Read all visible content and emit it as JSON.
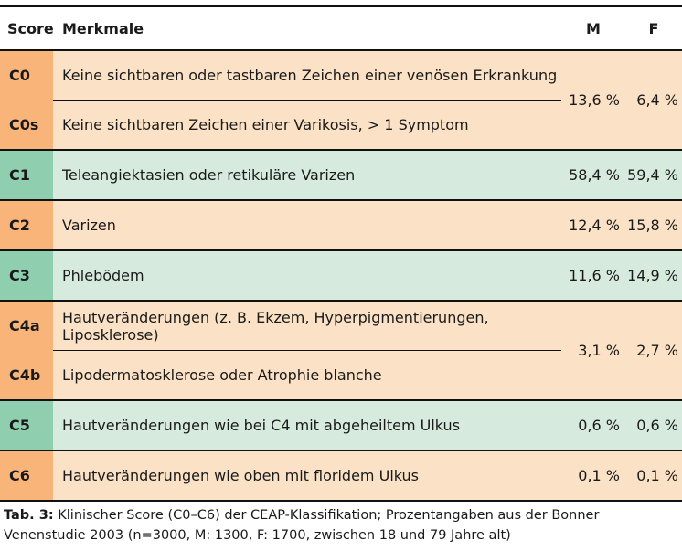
{
  "table": {
    "headers": {
      "score": "Score",
      "merkmale": "Merkmale",
      "m": "M",
      "f": "F"
    },
    "rows": [
      {
        "score": "C0",
        "merkmal": "Keine sichtbaren oder tastbaren Zeichen einer venösen Erkrankung",
        "m": "13,6 %",
        "f": "6,4 %",
        "color": "#f8b479"
      },
      {
        "score": "C0s",
        "merkmal": "Keine sichtbaren Zeichen einer Varikosis, > 1 Symptom",
        "color": "#f8b479"
      },
      {
        "score": "C1",
        "merkmal": "Teleangiektasien oder retikuläre Varizen",
        "m": "58,4 %",
        "f": "59,4 %",
        "color": "#8fcfb0"
      },
      {
        "score": "C2",
        "merkmal": "Varizen",
        "m": "12,4 %",
        "f": "15,8 %",
        "color": "#f8b479"
      },
      {
        "score": "C3",
        "merkmal": "Phlebödem",
        "m": "11,6 %",
        "f": "14,9 %",
        "color": "#8fcfb0"
      },
      {
        "score": "C4a",
        "merkmal": "Hautveränderungen (z. B. Ekzem, Hyperpigmentierungen, Liposklerose)",
        "m": "3,1 %",
        "f": "2,7 %",
        "color": "#f8b479"
      },
      {
        "score": "C4b",
        "merkmal": "Lipodermatosklerose oder Atrophie blanche",
        "color": "#f8b479"
      },
      {
        "score": "C5",
        "merkmal": "Hautveränderungen wie bei C4 mit abgeheiltem Ulkus",
        "m": "0,6 %",
        "f": "0,6 %",
        "color": "#8fcfb0"
      },
      {
        "score": "C6",
        "merkmal": "Hautveränderungen wie oben mit floridem Ulkus",
        "m": "0,1 %",
        "f": "0,1 %",
        "color": "#f8b479"
      }
    ]
  },
  "caption": {
    "label": "Tab. 3:",
    "text": " Klinischer Score (C0–C6) der CEAP-Klassifikation; Prozentangaben aus der Bonner Venenstudie 2003 (n=3000, M: 1300, F: 1700, zwischen 18 und 79 Jahre alt)"
  }
}
